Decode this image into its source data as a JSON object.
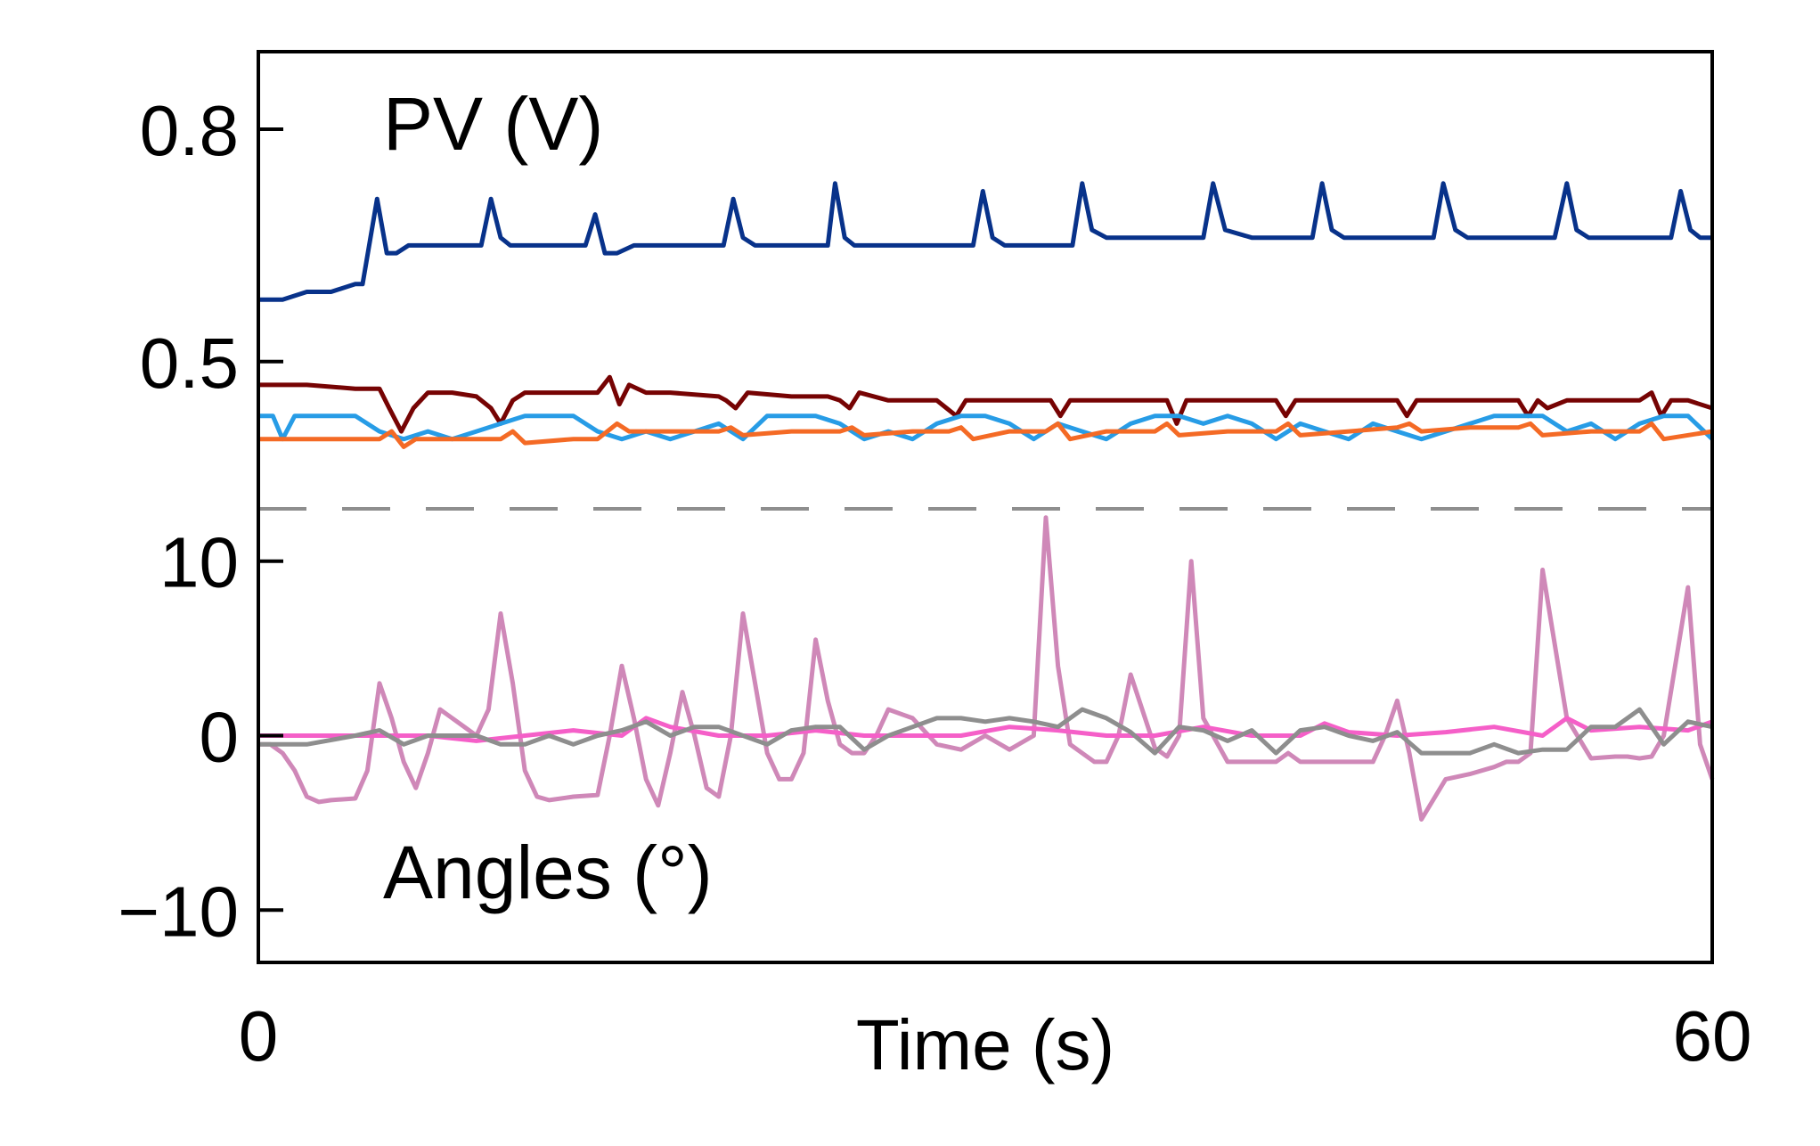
{
  "chart_data": {
    "type": "line",
    "x_range": [
      0,
      60
    ],
    "x_ticks": [
      "0",
      "60"
    ],
    "xlabel": "Time (s)",
    "panels": [
      {
        "id": "pv",
        "label": "PV (V)",
        "y_range": [
          0.31,
          0.9
        ],
        "y_ticks": [
          {
            "value": 0.8,
            "label": "0.8"
          },
          {
            "value": 0.5,
            "label": "0.5"
          }
        ],
        "series": [
          {
            "color": "#08328a",
            "x": [
              0,
              1,
              2,
              3,
              4,
              4.3,
              4.9,
              5.3,
              5.7,
              6.2,
              7,
              8,
              9,
              9.2,
              9.6,
              10,
              10.4,
              11,
              12,
              13,
              13.5,
              13.9,
              14.3,
              14.8,
              15.5,
              16.5,
              18,
              19,
              19.2,
              19.6,
              20,
              20.5,
              21,
              22,
              23,
              23.5,
              23.8,
              24.2,
              24.6,
              25,
              26,
              27,
              28,
              29,
              29.5,
              29.9,
              30.3,
              30.8,
              32,
              33,
              33.6,
              34,
              34.4,
              35,
              36,
              37,
              38,
              38.7,
              39,
              39.4,
              39.9,
              41,
              42,
              43,
              43.5,
              43.9,
              44.3,
              44.8,
              46,
              47,
              48,
              48.5,
              48.9,
              49.4,
              49.9,
              51,
              52,
              53,
              53.5,
              54,
              54.4,
              54.9,
              56,
              57,
              58,
              58.3,
              58.7,
              59.1,
              59.5,
              60
            ],
            "y": [
              0.58,
              0.58,
              0.59,
              0.59,
              0.6,
              0.6,
              0.71,
              0.64,
              0.64,
              0.65,
              0.65,
              0.65,
              0.65,
              0.65,
              0.71,
              0.66,
              0.65,
              0.65,
              0.65,
              0.65,
              0.65,
              0.69,
              0.64,
              0.64,
              0.65,
              0.65,
              0.65,
              0.65,
              0.65,
              0.71,
              0.66,
              0.65,
              0.65,
              0.65,
              0.65,
              0.65,
              0.73,
              0.66,
              0.65,
              0.65,
              0.65,
              0.65,
              0.65,
              0.65,
              0.65,
              0.72,
              0.66,
              0.65,
              0.65,
              0.65,
              0.65,
              0.73,
              0.67,
              0.66,
              0.66,
              0.66,
              0.66,
              0.66,
              0.66,
              0.73,
              0.67,
              0.66,
              0.66,
              0.66,
              0.66,
              0.73,
              0.67,
              0.66,
              0.66,
              0.66,
              0.66,
              0.66,
              0.73,
              0.67,
              0.66,
              0.66,
              0.66,
              0.66,
              0.66,
              0.73,
              0.67,
              0.66,
              0.66,
              0.66,
              0.66,
              0.66,
              0.72,
              0.67,
              0.66,
              0.66
            ]
          },
          {
            "color": "#760303",
            "x": [
              0,
              2,
              4,
              5,
              5.4,
              5.9,
              6.4,
              7,
              8,
              9,
              9.6,
              10,
              10.5,
              11,
              12,
              13,
              14,
              14.5,
              14.9,
              15.3,
              16,
              17,
              19,
              19.3,
              19.7,
              20.2,
              22,
              23.5,
              24,
              24.4,
              24.8,
              26,
              28,
              28.4,
              28.8,
              29.2,
              30,
              32,
              32.7,
              33.1,
              33.5,
              34,
              36,
              37,
              37.5,
              37.9,
              38.3,
              39,
              41,
              42,
              42.4,
              42.8,
              43.3,
              44,
              46,
              47,
              47.4,
              47.8,
              48.3,
              49,
              51,
              52,
              52.4,
              52.8,
              53.2,
              54,
              56,
              57,
              57.5,
              57.9,
              58.3,
              59,
              60
            ],
            "y": [
              0.47,
              0.47,
              0.465,
              0.465,
              0.44,
              0.41,
              0.44,
              0.46,
              0.46,
              0.455,
              0.44,
              0.42,
              0.45,
              0.46,
              0.46,
              0.46,
              0.46,
              0.48,
              0.445,
              0.47,
              0.46,
              0.46,
              0.455,
              0.45,
              0.44,
              0.46,
              0.455,
              0.455,
              0.45,
              0.44,
              0.46,
              0.45,
              0.45,
              0.44,
              0.43,
              0.45,
              0.45,
              0.45,
              0.45,
              0.43,
              0.45,
              0.45,
              0.45,
              0.45,
              0.45,
              0.42,
              0.45,
              0.45,
              0.45,
              0.45,
              0.43,
              0.45,
              0.45,
              0.45,
              0.45,
              0.45,
              0.43,
              0.45,
              0.45,
              0.45,
              0.45,
              0.45,
              0.43,
              0.45,
              0.44,
              0.45,
              0.45,
              0.45,
              0.46,
              0.43,
              0.45,
              0.45,
              0.44
            ]
          },
          {
            "color": "#279ce6",
            "x": [
              0,
              0.6,
              1,
              1.5,
              2,
              3,
              4,
              5,
              6,
              7,
              8,
              9,
              10,
              11,
              12,
              13,
              14,
              15,
              16,
              17,
              18,
              19,
              20,
              21,
              22,
              23,
              24,
              25,
              26,
              27,
              28,
              29,
              30,
              31,
              32,
              33,
              34,
              35,
              36,
              37,
              38,
              39,
              40,
              41,
              42,
              43,
              44,
              45,
              46,
              47,
              48,
              49,
              50,
              51,
              52,
              53,
              54,
              55,
              56,
              57,
              58,
              59,
              60
            ],
            "y": [
              0.43,
              0.43,
              0.4,
              0.43,
              0.43,
              0.43,
              0.43,
              0.41,
              0.4,
              0.41,
              0.4,
              0.41,
              0.42,
              0.43,
              0.43,
              0.43,
              0.41,
              0.4,
              0.41,
              0.4,
              0.41,
              0.42,
              0.4,
              0.43,
              0.43,
              0.43,
              0.42,
              0.4,
              0.41,
              0.4,
              0.42,
              0.43,
              0.43,
              0.42,
              0.4,
              0.42,
              0.41,
              0.4,
              0.42,
              0.43,
              0.43,
              0.42,
              0.43,
              0.42,
              0.4,
              0.42,
              0.41,
              0.4,
              0.42,
              0.41,
              0.4,
              0.41,
              0.42,
              0.43,
              0.43,
              0.43,
              0.41,
              0.42,
              0.4,
              0.42,
              0.43,
              0.43,
              0.4
            ]
          },
          {
            "color": "#f46a25",
            "x": [
              0,
              2,
              4,
              5,
              5.5,
              6,
              6.5,
              7,
              9,
              10,
              10.5,
              11,
              13,
              14,
              14.4,
              14.8,
              15.3,
              17,
              19,
              19.5,
              20,
              22,
              24,
              24.5,
              25,
              27,
              28.5,
              29,
              29.5,
              31,
              32.5,
              33,
              33.5,
              35,
              37,
              37.5,
              38,
              40,
              42,
              42.5,
              43,
              45,
              47,
              47.5,
              48,
              50,
              52,
              52.5,
              53,
              55,
              57,
              57.5,
              58,
              60
            ],
            "y": [
              0.4,
              0.4,
              0.4,
              0.4,
              0.41,
              0.39,
              0.4,
              0.4,
              0.4,
              0.4,
              0.41,
              0.395,
              0.4,
              0.4,
              0.41,
              0.42,
              0.41,
              0.41,
              0.41,
              0.415,
              0.405,
              0.41,
              0.41,
              0.415,
              0.405,
              0.41,
              0.41,
              0.415,
              0.4,
              0.41,
              0.41,
              0.42,
              0.4,
              0.41,
              0.41,
              0.42,
              0.405,
              0.41,
              0.41,
              0.42,
              0.405,
              0.41,
              0.415,
              0.42,
              0.41,
              0.415,
              0.415,
              0.42,
              0.405,
              0.41,
              0.41,
              0.42,
              0.4,
              0.41
            ]
          }
        ]
      },
      {
        "id": "angles",
        "label": "Angles (°)",
        "y_range": [
          -13,
          13
        ],
        "y_ticks": [
          {
            "value": 10,
            "label": "10"
          },
          {
            "value": 0,
            "label": "0"
          },
          {
            "value": -10,
            "label": "−10"
          }
        ],
        "series": [
          {
            "color": "#cf88b8",
            "x": [
              0,
              0.5,
              1,
              1.5,
              2,
              2.5,
              3,
              4,
              4.5,
              5,
              5.5,
              6,
              6.5,
              7,
              7.5,
              8,
              8.5,
              9,
              9.5,
              10,
              10.5,
              11,
              11.5,
              12,
              13,
              14,
              14.5,
              15,
              15.5,
              16,
              16.5,
              17,
              17.5,
              18,
              18.5,
              19,
              19.5,
              20,
              20.5,
              21,
              21.5,
              22,
              22.5,
              23,
              23.5,
              24,
              24.5,
              25,
              25.5,
              26,
              27,
              28,
              29,
              30,
              31,
              32,
              32.5,
              33,
              33.5,
              34,
              34.5,
              35,
              35.5,
              36,
              37,
              37.5,
              38,
              38.5,
              39,
              40,
              41,
              41.5,
              42,
              42.5,
              43,
              44,
              45,
              46,
              46.5,
              47,
              47.5,
              48,
              49,
              50,
              51,
              51.5,
              52,
              52.5,
              53,
              54,
              55,
              56,
              56.5,
              57,
              57.5,
              58,
              59,
              59.5,
              60
            ],
            "y": [
              -0.5,
              -0.5,
              -1,
              -2,
              -3.5,
              -3.8,
              -3.7,
              -3.6,
              -2,
              3,
              1,
              -1.5,
              -3,
              -1,
              1.5,
              1,
              0.5,
              0,
              1.5,
              7,
              3,
              -2,
              -3.5,
              -3.7,
              -3.5,
              -3.4,
              0,
              4,
              1,
              -2.5,
              -4,
              -1,
              2.5,
              0,
              -3,
              -3.5,
              0,
              7,
              3,
              -1,
              -2.5,
              -2.5,
              -1,
              5.5,
              2,
              -0.5,
              -1,
              -1,
              0,
              1.5,
              1,
              -0.5,
              -0.8,
              0,
              -0.8,
              0,
              12.5,
              4,
              -0.5,
              -1,
              -1.5,
              -1.5,
              0,
              3.5,
              -0.7,
              -1.2,
              0,
              10,
              1,
              -1.5,
              -1.5,
              -1.5,
              -1.5,
              -1,
              -1.5,
              -1.5,
              -1.5,
              -1.5,
              0,
              2,
              -1,
              -4.8,
              -2.5,
              -2.2,
              -1.8,
              -1.5,
              -1.5,
              -1,
              9.5,
              1,
              -1.3,
              -1.2,
              -1.2,
              -1.3,
              -1.2,
              0,
              8.5,
              -0.5,
              -2.5
            ]
          },
          {
            "color": "#f55fc8",
            "x": [
              0,
              2,
              4,
              5,
              7,
              9,
              11,
              13,
              15,
              16,
              17,
              19,
              21,
              23,
              25,
              27,
              29,
              31,
              33,
              35,
              37,
              39,
              41,
              43,
              44,
              45,
              47,
              49,
              51,
              53,
              54,
              55,
              57,
              59,
              60
            ],
            "y": [
              0,
              0,
              0,
              0,
              0,
              -0.3,
              0,
              0.3,
              0,
              1,
              0.5,
              0,
              0,
              0.3,
              0,
              0,
              0,
              0.5,
              0.3,
              0,
              0,
              0.5,
              0,
              0,
              0.7,
              0.2,
              0,
              0.2,
              0.5,
              0,
              1,
              0.3,
              0.5,
              0.3,
              0.8
            ]
          },
          {
            "color": "#8e8e8e",
            "x": [
              0,
              2,
              4,
              5,
              6,
              7,
              9,
              10,
              11,
              12,
              13,
              14,
              15,
              16,
              17,
              18,
              19,
              20,
              21,
              22,
              23,
              24,
              25,
              26,
              27,
              28,
              29,
              30,
              31,
              32,
              33,
              34,
              35,
              36,
              37,
              38,
              39,
              40,
              41,
              42,
              43,
              44,
              45,
              46,
              47,
              48,
              49,
              50,
              51,
              52,
              53,
              54,
              55,
              56,
              57,
              58,
              59,
              60
            ],
            "y": [
              -0.5,
              -0.5,
              0,
              0.3,
              -0.5,
              0,
              0,
              -0.5,
              -0.5,
              0,
              -0.5,
              0,
              0.3,
              0.8,
              0,
              0.5,
              0.5,
              0,
              -0.5,
              0.3,
              0.5,
              0.5,
              -0.8,
              0,
              0.5,
              1,
              1,
              0.8,
              1,
              0.8,
              0.5,
              1.5,
              1,
              0.2,
              -1,
              0.5,
              0.3,
              -0.3,
              0.3,
              -1,
              0.3,
              0.5,
              0,
              -0.3,
              0.2,
              -1,
              -1,
              -1,
              -0.5,
              -1,
              -0.8,
              -0.8,
              0.5,
              0.5,
              1.5,
              -0.5,
              0.8,
              0.5
            ]
          }
        ]
      }
    ]
  }
}
